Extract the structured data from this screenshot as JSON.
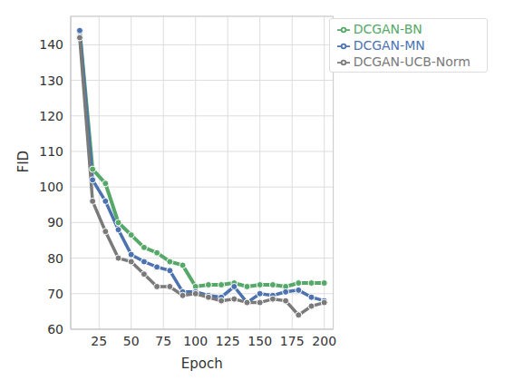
{
  "chart_data": {
    "type": "line",
    "x_label": "Epoch",
    "y_label": "FID",
    "x": [
      10,
      20,
      30,
      40,
      50,
      60,
      70,
      80,
      90,
      100,
      110,
      120,
      130,
      140,
      150,
      160,
      170,
      180,
      190,
      200
    ],
    "series": [
      {
        "name": "DCGAN-BN",
        "color": "#55a868",
        "marker": "circle",
        "line_style": "solid",
        "values": [
          144,
          105,
          101,
          90,
          86.5,
          83,
          81.5,
          79,
          78,
          72,
          72.5,
          72.5,
          73,
          72,
          72.5,
          72.5,
          72,
          73,
          73,
          73
        ]
      },
      {
        "name": "DCGAN-MN",
        "color": "#4c72b0",
        "marker": "circle",
        "line_style": "solid",
        "values": [
          144,
          102,
          96,
          88,
          81,
          79,
          77.5,
          76.5,
          70.5,
          70.5,
          69.5,
          69,
          72,
          67.5,
          70,
          69.5,
          70.5,
          71,
          69,
          68
        ]
      },
      {
        "name": "DCGAN-UCB-Norm",
        "color": "#7a7a7a",
        "marker": "circle",
        "line_style": "solid",
        "values": [
          142,
          96,
          87.5,
          80,
          79,
          75.5,
          72,
          72,
          69.5,
          70,
          69,
          68,
          68.5,
          67.5,
          67.5,
          68.5,
          68,
          64,
          66.5,
          67.5
        ]
      }
    ],
    "xlim": [
      3,
      207
    ],
    "ylim": [
      60,
      148
    ],
    "xticks": [
      25,
      50,
      75,
      100,
      125,
      150,
      175,
      200
    ],
    "yticks": [
      60,
      70,
      80,
      90,
      100,
      110,
      120,
      130,
      140
    ],
    "grid": true,
    "legend": "upper right"
  }
}
